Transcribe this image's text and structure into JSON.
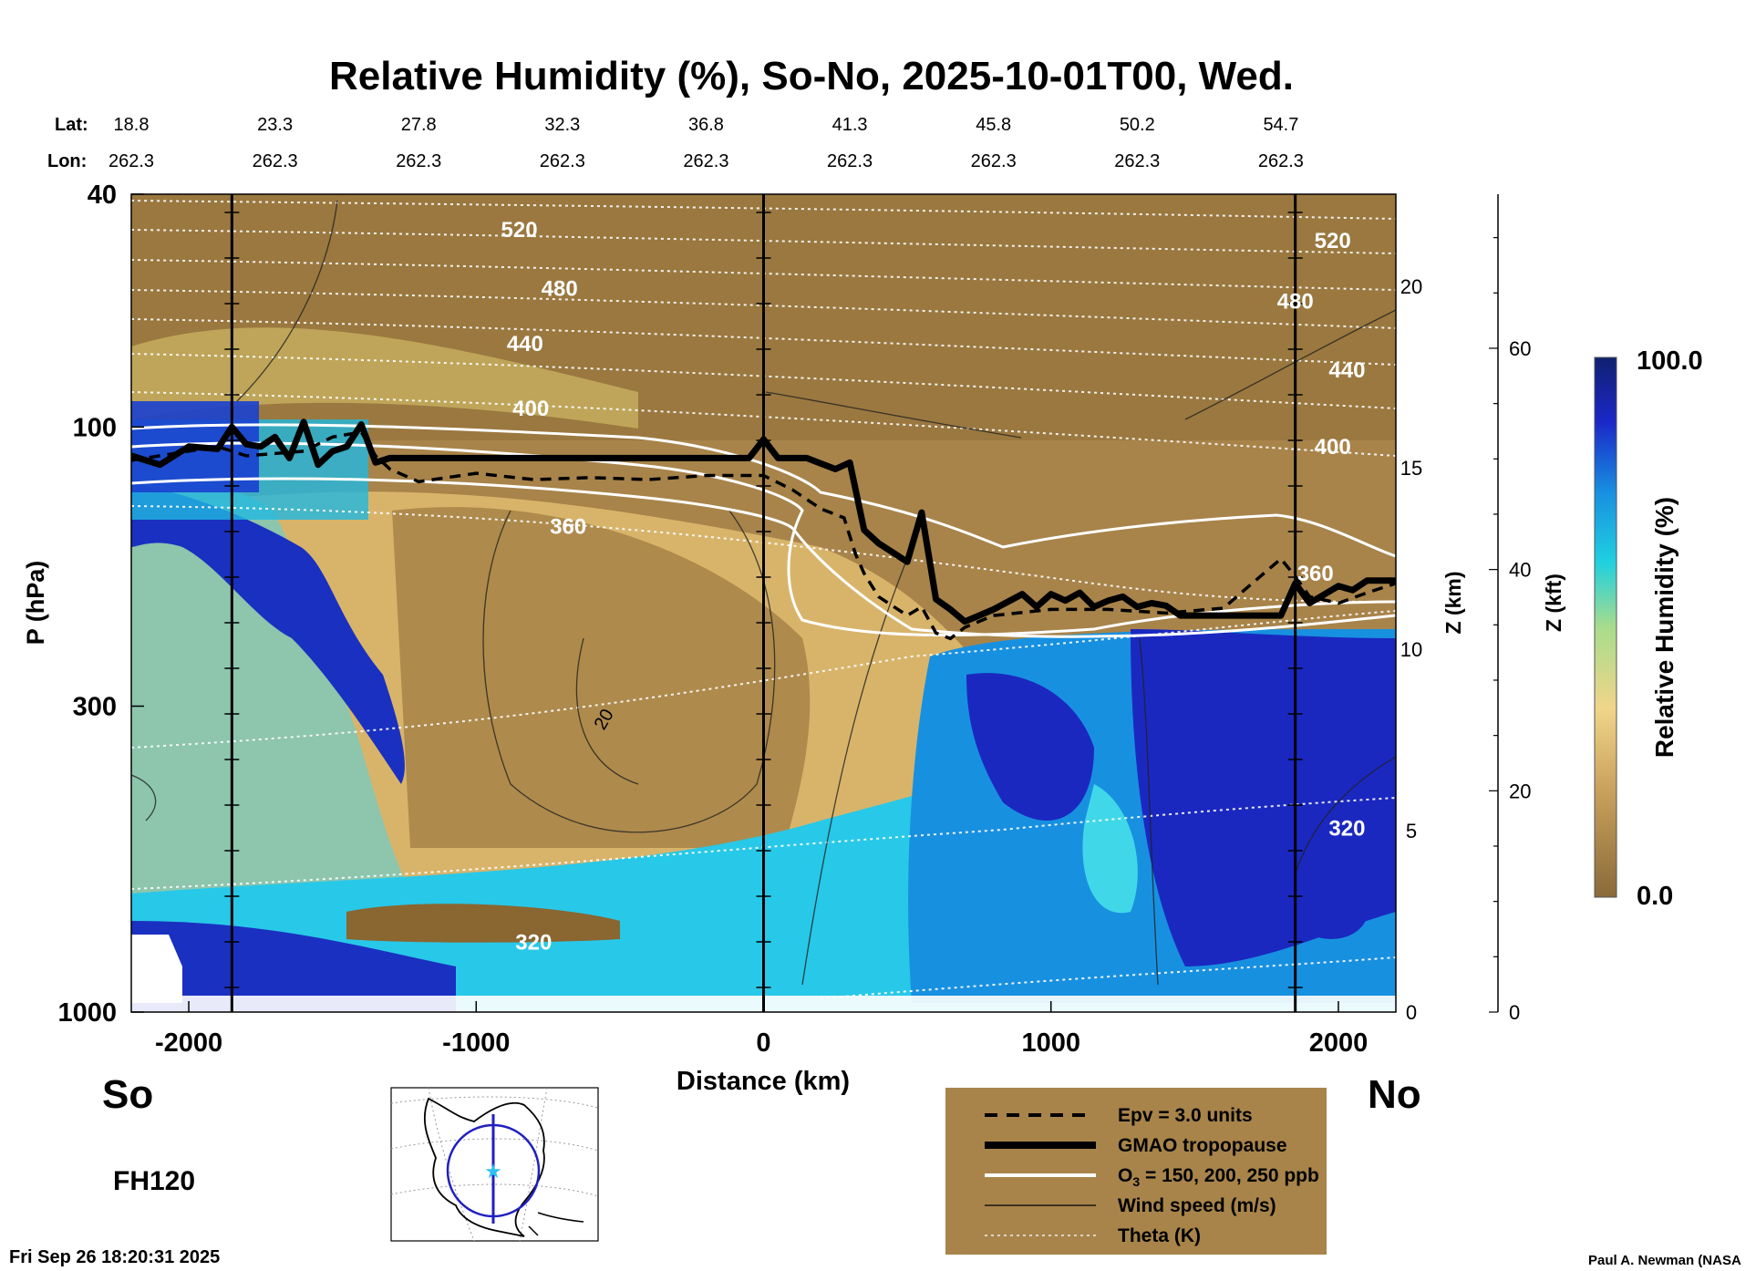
{
  "colors": {
    "plot_background": "#a8844a",
    "humid_blue": "#1020b0",
    "cyan": "#20c8e0",
    "tropopause": "#000000",
    "ozone": "#ffffff",
    "legend_box": "#a8844a",
    "map_circle": "#2020c0",
    "map_star": "#30c0f0"
  },
  "chart_data": {
    "type": "heatmap",
    "title": "Relative Humidity (%), So-No, 2025-10-01T00, Wed.",
    "xlabel": "Distance (km)",
    "ylabel": "P (hPa)",
    "z_km_label": "Z (km)",
    "z_kft_label": "Z (kft)",
    "colorbar_label": "Relative Humidity (%)",
    "colorbar_range": [
      0.0,
      100.0
    ],
    "colorbar_ticks": [
      "0.0",
      "100.0"
    ],
    "xlim": [
      -2200,
      2200
    ],
    "ylim": [
      1000,
      40
    ],
    "y_scale": "log",
    "x_ticks": [
      -2000,
      -1000,
      0,
      1000,
      2000
    ],
    "x_tick_labels": [
      "-2000",
      "-1000",
      "0",
      "1000",
      "2000"
    ],
    "y_ticks": [
      40,
      100,
      300,
      1000
    ],
    "y_tick_labels": [
      "40",
      "100",
      "300",
      "1000"
    ],
    "z_km_ticks": [
      0,
      5,
      10,
      15,
      20
    ],
    "z_km_tick_labels": [
      "0",
      "5",
      "10",
      "15",
      "20"
    ],
    "z_kft_ticks": [
      0,
      20,
      40,
      60
    ],
    "z_kft_tick_labels": [
      "0",
      "20",
      "40",
      "60"
    ],
    "lat_label": "Lat:",
    "lon_label": "Lon:",
    "lat_values": [
      "18.8",
      "23.3",
      "27.8",
      "32.3",
      "36.8",
      "41.3",
      "45.8",
      "50.2",
      "54.7"
    ],
    "lon_values": [
      "262.3",
      "262.3",
      "262.3",
      "262.3",
      "262.3",
      "262.3",
      "262.3",
      "262.3",
      "262.3"
    ],
    "lat_lon_positions_km": [
      -2200,
      -1700,
      -1200,
      -700,
      -200,
      300,
      800,
      1300,
      1800
    ],
    "vertical_lines_km": [
      -1850,
      0,
      1850
    ],
    "left_end_label": "So",
    "right_end_label": "No",
    "forecast_hour_label": "FH120",
    "timestamp": "Fri Sep 26 18:20:31 2025",
    "credit": "Paul A. Newman (NASA",
    "theta_labels": [
      {
        "text": "520",
        "x": -850,
        "p": 46
      },
      {
        "text": "480",
        "x": -710,
        "p": 58
      },
      {
        "text": "440",
        "x": -830,
        "p": 72
      },
      {
        "text": "400",
        "x": -810,
        "p": 93
      },
      {
        "text": "360",
        "x": -680,
        "p": 148
      },
      {
        "text": "320",
        "x": -800,
        "p": 760
      },
      {
        "text": "520",
        "x": 1980,
        "p": 48
      },
      {
        "text": "480",
        "x": 1850,
        "p": 61
      },
      {
        "text": "440",
        "x": 2030,
        "p": 80
      },
      {
        "text": "400",
        "x": 1980,
        "p": 108
      },
      {
        "text": "360",
        "x": 1920,
        "p": 178
      },
      {
        "text": "320",
        "x": 2030,
        "p": 485
      }
    ],
    "wind_labels": [
      {
        "text": "20",
        "x": -560,
        "p": 315
      }
    ],
    "legend": [
      {
        "label": "Epv = 3.0 units",
        "style": "dashed-black"
      },
      {
        "label": "GMAO tropopause",
        "style": "thick-black"
      },
      {
        "label": "O3 = 150, 200, 250 ppb",
        "style": "white"
      },
      {
        "label": "Wind speed (m/s)",
        "style": "thin-black"
      },
      {
        "label": "Theta (K)",
        "style": "dotted-white"
      }
    ],
    "legend_o3_prefix": "O",
    "legend_o3_sub": "3",
    "legend_o3_suffix": " = 150, 200, 250 ppb",
    "tropopause_x": [
      -2200,
      -2100,
      -2000,
      -1900,
      -1850,
      -1800,
      -1750,
      -1700,
      -1650,
      -1600,
      -1550,
      -1500,
      -1450,
      -1400,
      -1350,
      -1300,
      -1200,
      -1000,
      -800,
      -600,
      -400,
      -200,
      -50,
      0,
      50,
      150,
      250,
      300,
      350,
      400,
      500,
      550,
      600,
      650,
      700,
      750,
      800,
      900,
      950,
      1000,
      1050,
      1100,
      1150,
      1200,
      1250,
      1300,
      1350,
      1400,
      1450,
      1500,
      1600,
      1700,
      1800,
      1850,
      1900,
      2000,
      2050,
      2100,
      2200
    ],
    "tropopause_p": [
      112,
      116,
      108,
      109,
      100,
      107,
      108,
      104,
      113,
      98,
      116,
      110,
      108,
      99,
      115,
      113,
      113,
      113,
      113,
      113,
      113,
      113,
      113,
      105,
      113,
      113,
      118,
      115,
      150,
      158,
      170,
      140,
      197,
      205,
      215,
      210,
      205,
      193,
      203,
      193,
      198,
      192,
      203,
      198,
      195,
      203,
      200,
      202,
      210,
      210,
      210,
      210,
      210,
      185,
      200,
      187,
      190,
      183,
      183
    ],
    "epv_x": [
      -2200,
      -1900,
      -1800,
      -1600,
      -1500,
      -1400,
      -1350,
      -1300,
      -1200,
      -1000,
      -800,
      -600,
      -400,
      -200,
      0,
      100,
      200,
      280,
      320,
      350,
      400,
      500,
      550,
      600,
      650,
      700,
      800,
      1000,
      1200,
      1400,
      1600,
      1700,
      1800,
      1850,
      1900,
      2000,
      2100,
      2200
    ],
    "epv_p": [
      114,
      108,
      112,
      110,
      104,
      102,
      112,
      118,
      124,
      120,
      123,
      122,
      123,
      121,
      121,
      128,
      138,
      143,
      165,
      178,
      195,
      210,
      203,
      225,
      230,
      220,
      210,
      205,
      205,
      208,
      204,
      185,
      168,
      180,
      195,
      200,
      192,
      185
    ]
  },
  "map": {
    "name": "inset-map"
  }
}
